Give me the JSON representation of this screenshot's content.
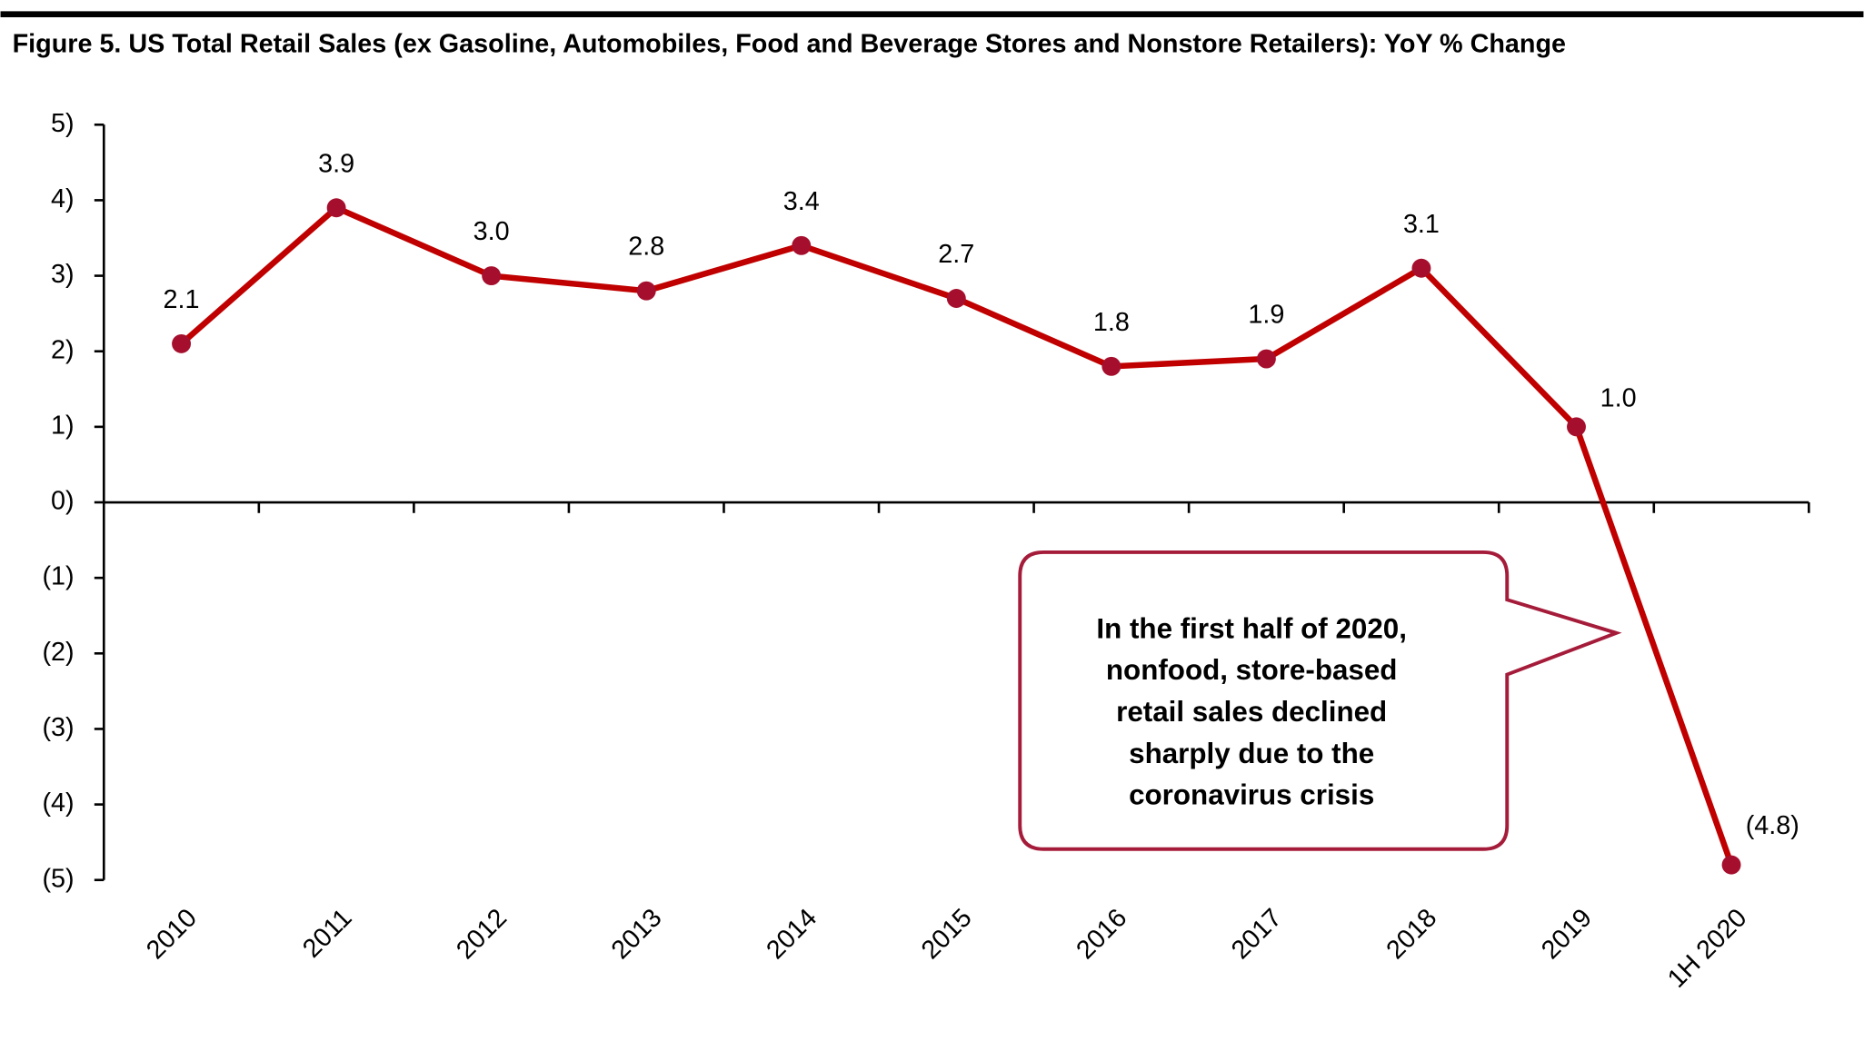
{
  "chart_data": {
    "type": "line",
    "title": "Figure 5. US Total Retail Sales (ex Gasoline, Automobiles, Food and Beverage Stores and Nonstore Retailers): YoY % Change",
    "categories": [
      "2010",
      "2011",
      "2012",
      "2013",
      "2014",
      "2015",
      "2016",
      "2017",
      "2018",
      "2019",
      "1H 2020"
    ],
    "series": [
      {
        "color": "#c00000",
        "marker_color": "#a50f2d",
        "values": [
          2.1,
          3.9,
          3.0,
          2.8,
          3.4,
          2.7,
          1.8,
          1.9,
          3.1,
          1.0,
          -4.8
        ],
        "value_labels": [
          "2.1",
          "3.9",
          "3.0",
          "2.8",
          "3.4",
          "2.7",
          "1.8",
          "1.9",
          "3.1",
          "1.0",
          "(4.8)"
        ]
      }
    ],
    "ylim": [
      -5,
      5
    ],
    "yticks": [
      {
        "value": 5,
        "label": "5)"
      },
      {
        "value": 4,
        "label": "4)"
      },
      {
        "value": 3,
        "label": "3)"
      },
      {
        "value": 2,
        "label": "2)"
      },
      {
        "value": 1,
        "label": "1)"
      },
      {
        "value": 0,
        "label": "0)"
      },
      {
        "value": -1,
        "label": "(1)"
      },
      {
        "value": -2,
        "label": "(2)"
      },
      {
        "value": -3,
        "label": "(3)"
      },
      {
        "value": -4,
        "label": "(4)"
      },
      {
        "value": -5,
        "label": "(5)"
      }
    ],
    "annotation": [
      "In the first half of 2020,",
      "nonfood, store-based",
      "retail sales declined",
      "sharply due to the",
      "coronavirus crisis"
    ]
  }
}
